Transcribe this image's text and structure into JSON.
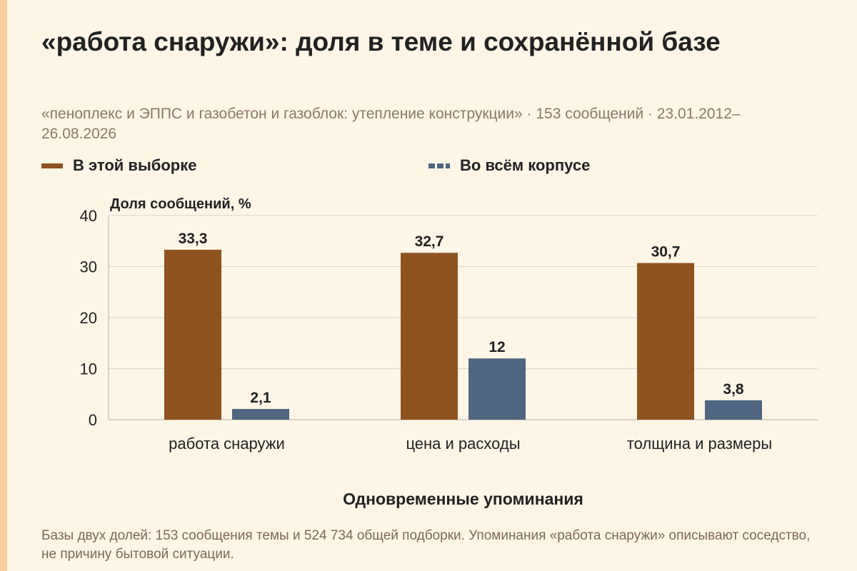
{
  "title": "«работа снаружи»: доля в теме и сохранённой базе",
  "subtitle": "«пеноплекс и ЭППС и газобетон и газоблок: утепление конструкции» · 153 сообщений · 23.01.2012–26.08.2026",
  "footnote": "Базы двух долей: 153 сообщения темы и 524 734 общей подборки. Упоминания «работа снаружи» описывают соседство, не причину бытовой ситуации.",
  "legend": [
    {
      "label": "В этой выборке",
      "color": "#8f531f",
      "style": "solid"
    },
    {
      "label": "Во всём корпусе",
      "color": "#4f6580",
      "style": "dashed"
    }
  ],
  "chart_data": {
    "type": "bar",
    "categories": [
      "работа снаружи",
      "цена и расходы",
      "толщина и размеры"
    ],
    "series": [
      {
        "name": "В этой выборке",
        "values": [
          33.3,
          32.7,
          30.7
        ],
        "labels": [
          "33,3",
          "32,7",
          "30,7"
        ],
        "color": "#8f531f"
      },
      {
        "name": "Во всём корпусе",
        "values": [
          2.1,
          12,
          3.8
        ],
        "labels": [
          "2,1",
          "12",
          "3,8"
        ],
        "color": "#4f6580"
      }
    ],
    "xlabel": "Одновременные упоминания",
    "ylabel": "Доля сообщений, %",
    "ylim": [
      0,
      40
    ],
    "yticks": [
      0,
      10,
      20,
      30,
      40
    ],
    "grid": true,
    "legend_position": "top-left"
  }
}
